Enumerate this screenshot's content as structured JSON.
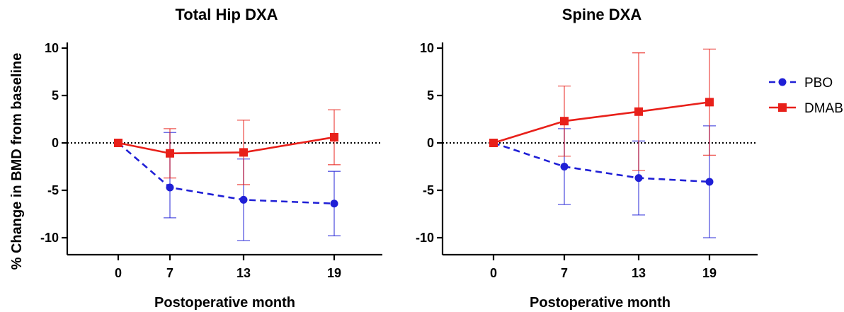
{
  "chart_data": [
    {
      "type": "line",
      "title": "Total Hip DXA",
      "xlabel": "Postoperative month",
      "ylabel": "% Change in BMD from baseline",
      "x": [
        0,
        7,
        13,
        19
      ],
      "x_ticks": [
        "0",
        "7",
        "13",
        "19"
      ],
      "y_ticks": [
        "10",
        "5",
        "0",
        "-5",
        "-10"
      ],
      "ylim": [
        -12,
        10
      ],
      "reference_line": 0,
      "series": [
        {
          "name": "PBO",
          "color": "#1f1fd6",
          "line_style": "dashed",
          "marker": "circle",
          "values": [
            0,
            -4.7,
            -6.0,
            -6.4
          ],
          "error_upper": [
            0,
            1.1,
            -1.7,
            -3.0
          ],
          "error_lower": [
            0,
            -7.9,
            -10.3,
            -9.8
          ]
        },
        {
          "name": "DMAB",
          "color": "#e8201a",
          "line_style": "solid",
          "marker": "square",
          "values": [
            0,
            -1.1,
            -1.0,
            0.6
          ],
          "error_upper": [
            0,
            1.5,
            2.4,
            3.5
          ],
          "error_lower": [
            0,
            -3.7,
            -4.4,
            -2.3
          ]
        }
      ]
    },
    {
      "type": "line",
      "title": "Spine DXA",
      "xlabel": "Postoperative month",
      "ylabel": "",
      "x": [
        0,
        7,
        13,
        19
      ],
      "x_ticks": [
        "0",
        "7",
        "13",
        "19"
      ],
      "y_ticks": [
        "10",
        "5",
        "0",
        "-5",
        "-10"
      ],
      "ylim": [
        -12,
        10
      ],
      "reference_line": 0,
      "legend_position": "right",
      "series": [
        {
          "name": "PBO",
          "color": "#1f1fd6",
          "line_style": "dashed",
          "marker": "circle",
          "values": [
            0,
            -2.5,
            -3.7,
            -4.1
          ],
          "error_upper": [
            0,
            1.5,
            0.2,
            1.8
          ],
          "error_lower": [
            0,
            -6.5,
            -7.6,
            -10.0
          ]
        },
        {
          "name": "DMAB",
          "color": "#e8201a",
          "line_style": "solid",
          "marker": "square",
          "values": [
            0,
            2.3,
            3.3,
            4.3
          ],
          "error_upper": [
            0,
            6.0,
            9.5,
            9.9
          ],
          "error_lower": [
            0,
            -1.4,
            -2.9,
            -1.3
          ]
        }
      ]
    }
  ]
}
